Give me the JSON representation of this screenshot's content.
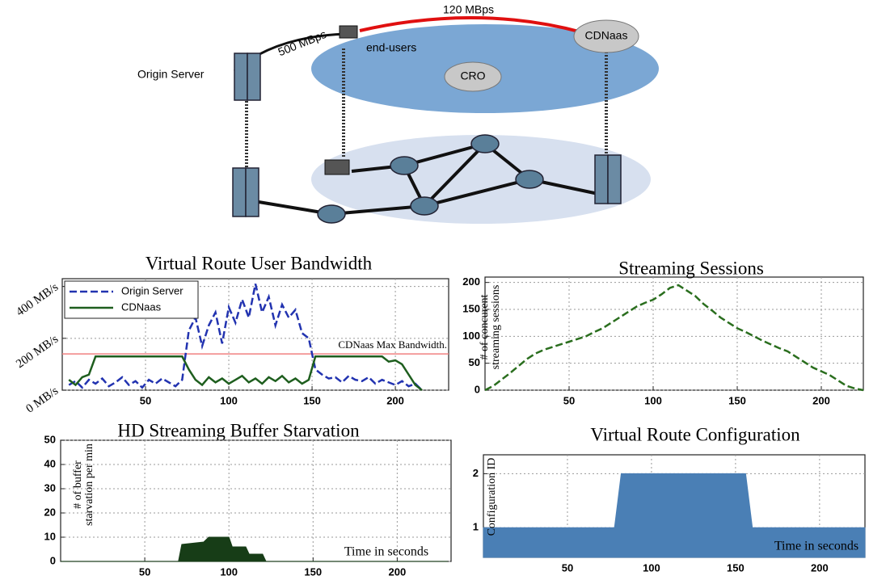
{
  "diagram": {
    "labels": {
      "link_cdn": "120 MBps",
      "link_origin": "500 MBps",
      "end_users": "end-users",
      "cdnaas": "CDNaas",
      "cro": "CRO",
      "origin_server": "Origin Server"
    }
  },
  "chart_data": [
    {
      "type": "line",
      "title": "Virtual Route User Bandwidth",
      "x": [
        4,
        8,
        12,
        16,
        20,
        24,
        28,
        32,
        36,
        40,
        44,
        48,
        52,
        56,
        60,
        64,
        68,
        72,
        76,
        80,
        84,
        88,
        92,
        96,
        100,
        104,
        108,
        112,
        116,
        120,
        124,
        128,
        132,
        136,
        140,
        144,
        148,
        152,
        156,
        160,
        164,
        168,
        172,
        176,
        180,
        184,
        188,
        192,
        196,
        200,
        204,
        208,
        212,
        216
      ],
      "series": [
        {
          "name": "Origin Server",
          "color": "#2233b0",
          "style": "dashed",
          "values": [
            20,
            35,
            10,
            40,
            25,
            45,
            15,
            30,
            50,
            20,
            35,
            10,
            40,
            25,
            45,
            30,
            15,
            40,
            230,
            280,
            170,
            250,
            300,
            180,
            320,
            260,
            350,
            280,
            410,
            300,
            360,
            250,
            330,
            280,
            310,
            220,
            200,
            80,
            60,
            45,
            50,
            30,
            55,
            40,
            35,
            50,
            25,
            40,
            30,
            20,
            35,
            15,
            25,
            0
          ]
        },
        {
          "name": "CDNaas",
          "color": "#1e5e1e",
          "style": "solid",
          "values": [
            40,
            20,
            50,
            60,
            130,
            130,
            130,
            130,
            130,
            130,
            130,
            130,
            130,
            130,
            130,
            130,
            130,
            130,
            80,
            40,
            20,
            50,
            30,
            45,
            25,
            40,
            55,
            30,
            45,
            25,
            50,
            35,
            55,
            30,
            45,
            25,
            40,
            130,
            130,
            130,
            130,
            130,
            130,
            130,
            130,
            130,
            130,
            130,
            110,
            115,
            100,
            60,
            20,
            0
          ]
        }
      ],
      "xlim": [
        0,
        232
      ],
      "ylim": [
        0,
        430
      ],
      "xticks": [
        50,
        100,
        150,
        200
      ],
      "yticks": [
        {
          "value": 0,
          "label": "0 MB/s"
        },
        {
          "value": 200,
          "label": "200 MB/s"
        },
        {
          "value": 400,
          "label": "400 MB/s"
        }
      ],
      "grid": true,
      "legend": "upper left",
      "threshold": {
        "value": 140,
        "label": "CDNaas Max Bandwidth.",
        "color": "#f08080"
      }
    },
    {
      "type": "line",
      "title": "Streaming Sessions",
      "x": [
        0,
        5,
        10,
        15,
        20,
        25,
        30,
        35,
        40,
        45,
        50,
        55,
        60,
        65,
        70,
        75,
        80,
        85,
        90,
        95,
        100,
        105,
        110,
        115,
        120,
        125,
        130,
        135,
        140,
        145,
        150,
        155,
        160,
        165,
        170,
        175,
        180,
        185,
        190,
        195,
        200,
        205,
        210,
        215,
        220,
        225
      ],
      "series": [
        {
          "name": "# of concurent streaming sessions",
          "color": "#2a6e1e",
          "style": "dashed",
          "values": [
            0,
            8,
            20,
            32,
            45,
            58,
            68,
            75,
            80,
            85,
            90,
            95,
            100,
            108,
            115,
            125,
            135,
            145,
            155,
            162,
            168,
            178,
            190,
            195,
            185,
            175,
            160,
            148,
            135,
            125,
            115,
            108,
            100,
            92,
            85,
            78,
            72,
            62,
            52,
            42,
            35,
            28,
            18,
            8,
            3,
            0
          ]
        }
      ],
      "xlim": [
        0,
        225
      ],
      "ylim": [
        0,
        210
      ],
      "xticks": [
        50,
        100,
        150,
        200
      ],
      "yticks": [
        0,
        50,
        100,
        150,
        200
      ],
      "grid": true
    },
    {
      "type": "area",
      "title": "HD Streaming Buffer Starvation",
      "x": [
        0,
        70,
        72,
        85,
        88,
        100,
        102,
        110,
        112,
        120,
        122,
        230
      ],
      "values": [
        0,
        0,
        7,
        8,
        10,
        10,
        6,
        6,
        3,
        3,
        0,
        0
      ],
      "color": "#173d17",
      "xlim": [
        0,
        232
      ],
      "ylim": [
        0,
        50
      ],
      "xticks": [
        50,
        100,
        150,
        200
      ],
      "yticks": [
        0,
        10,
        20,
        30,
        40,
        50
      ],
      "grid": true,
      "ylabel": "# of buffer starvation per min",
      "note": "Time in seconds"
    },
    {
      "type": "area",
      "title": "Virtual Route Configuration",
      "x": [
        0,
        78,
        82,
        156,
        160,
        227
      ],
      "values": [
        1,
        1,
        2,
        2,
        1,
        1
      ],
      "color": "#4a7fb5",
      "xlim": [
        0,
        227
      ],
      "ylim": [
        0.45,
        2.35
      ],
      "xticks": [
        50,
        100,
        150,
        200
      ],
      "yticks": [
        1,
        2
      ],
      "grid": true,
      "ylabel": "Configuration ID",
      "note": "Time in seconds"
    }
  ]
}
